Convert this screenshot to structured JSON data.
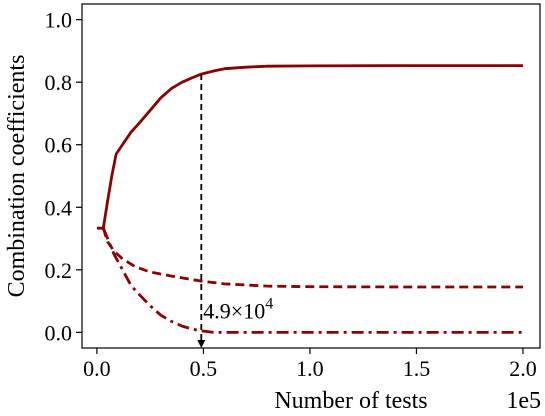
{
  "chart_data": {
    "type": "line",
    "title": "",
    "xlabel": "Number of tests",
    "ylabel": "Combination coefficients",
    "x_offset_label": "1e5",
    "xlim": [
      -0.07,
      2.08
    ],
    "ylim": [
      -0.05,
      1.05
    ],
    "x_scale_factor": 100000,
    "xticks": [
      0.0,
      0.5,
      1.0,
      1.5,
      2.0
    ],
    "xtick_labels": [
      "0.0",
      "0.5",
      "1.0",
      "1.5",
      "2.0"
    ],
    "yticks": [
      0.0,
      0.2,
      0.4,
      0.6,
      0.8,
      1.0
    ],
    "ytick_labels": [
      "0.0",
      "0.2",
      "0.4",
      "0.6",
      "0.8",
      "1.0"
    ],
    "grid": false,
    "legend": "none",
    "color": "#8b0000",
    "series": [
      {
        "style": "solid",
        "x": [
          0.0,
          0.03,
          0.05,
          0.07,
          0.09,
          0.11,
          0.13,
          0.16,
          0.2,
          0.25,
          0.3,
          0.35,
          0.4,
          0.45,
          0.49,
          0.55,
          0.6,
          0.7,
          0.8,
          1.0,
          1.5,
          2.0
        ],
        "y": [
          0.333,
          0.333,
          0.42,
          0.5,
          0.57,
          0.59,
          0.61,
          0.64,
          0.67,
          0.71,
          0.75,
          0.78,
          0.8,
          0.815,
          0.826,
          0.836,
          0.843,
          0.848,
          0.851,
          0.852,
          0.853,
          0.853
        ]
      },
      {
        "style": "dashed",
        "x": [
          0.03,
          0.05,
          0.08,
          0.12,
          0.18,
          0.25,
          0.35,
          0.49,
          0.6,
          0.8,
          1.0,
          1.5,
          2.0
        ],
        "y": [
          0.333,
          0.29,
          0.26,
          0.235,
          0.21,
          0.193,
          0.18,
          0.164,
          0.155,
          0.148,
          0.146,
          0.145,
          0.145
        ]
      },
      {
        "style": "dashdot",
        "x": [
          0.03,
          0.05,
          0.08,
          0.12,
          0.16,
          0.2,
          0.25,
          0.3,
          0.35,
          0.4,
          0.45,
          0.49,
          0.55,
          0.7,
          1.0,
          1.5,
          2.0
        ],
        "y": [
          0.333,
          0.3,
          0.25,
          0.2,
          0.15,
          0.12,
          0.085,
          0.055,
          0.035,
          0.02,
          0.01,
          0.005,
          0.0,
          0.0,
          0.0,
          0.0,
          0.0
        ]
      }
    ],
    "annotations": [
      {
        "x": 0.49,
        "y_top": 0.826,
        "y_bottom": -0.05,
        "label_mantissa": "4.9",
        "label_times": "×",
        "label_base": "10",
        "label_exponent": "4"
      }
    ]
  }
}
